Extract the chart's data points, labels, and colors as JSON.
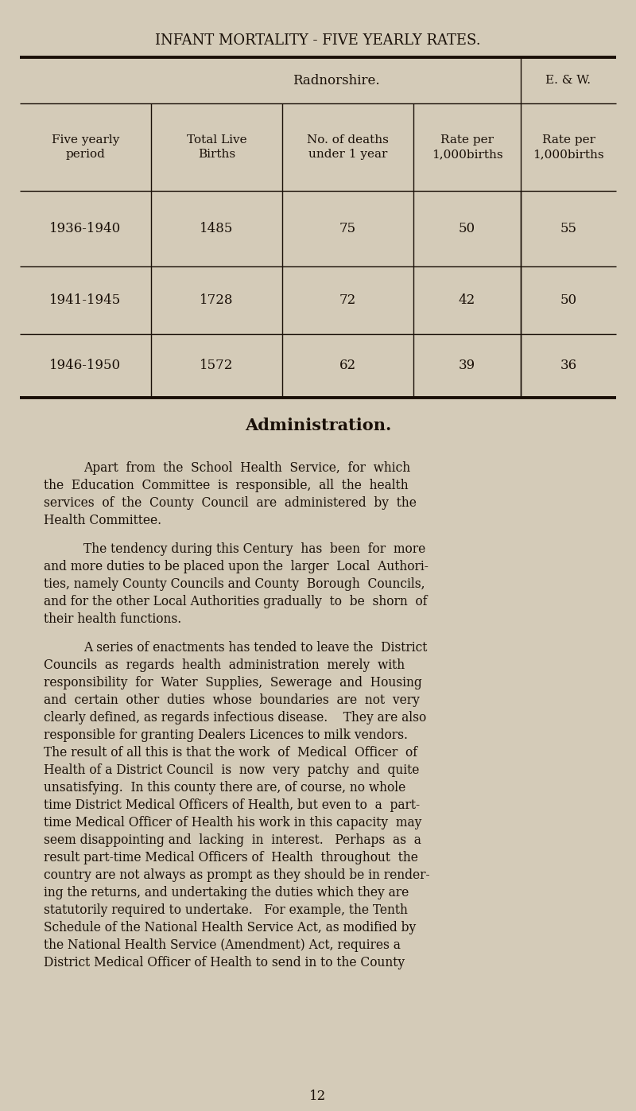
{
  "bg_color": "#d4cbb8",
  "text_color": "#1a1008",
  "title": "INFANT MORTALITY - FIVE YEARLY RATES.",
  "section_title": "Administration.",
  "table_data": [
    [
      "1936-1940",
      "1485",
      "75",
      "50",
      "55"
    ],
    [
      "1941-1945",
      "1728",
      "72",
      "42",
      "50"
    ],
    [
      "1946-1950",
      "1572",
      "62",
      "39",
      "36"
    ]
  ],
  "page_number": "12",
  "para1": "Apart  from  the  School  Health  Service,  for  which the  Education  Committee  is  responsible,  all  the  health services  of  the  County  Council  are  administered  by  the Health Committee.",
  "para2_lines": [
    "The tendency during this Century  has  been  for  more",
    "and more duties to be placed upon the  larger  Local  Authori-",
    "ties, namely County Councils and County  Borough  Councils,",
    "and for the other Local Authorities gradually  to  be  shorn  of",
    "their health functions."
  ],
  "para3_lines": [
    "A series of enactments has tended to leave the  District",
    "Councils  as  regards  health  administration  merely  with",
    "responsibility  for  Water  Supplies,  Sewerage  and  Housing",
    "and  certain  other  duties  whose  boundaries  are  not  very",
    "clearly defined, as regards infectious disease.    They are also",
    "responsible for granting Dealers Licences to milk vendors.",
    "The result of all this is that the work  of  Medical  Officer  of",
    "Health of a District Council  is  now  very  patchy  and  quite",
    "unsatisfying.  In this county there are, of course, no whole",
    "time District Medical Officers of Health, but even to  a  part-",
    "time Medical Officer of Health his work in this capacity  may",
    "seem disappointing and  lacking  in  interest.   Perhaps  as  a",
    "result part-time Medical Officers of  Health  throughout  the",
    "country are not always as prompt as they should be in render-",
    "ing the returns, and undertaking the duties which they are",
    "statutorily required to undertake.   For example, the Tenth",
    "Schedule of the National Health Service Act, as modified by",
    "the National Health Service (Amendment) Act, requires a",
    "District Medical Officer of Health to send in to the County"
  ],
  "para1_lines": [
    "Apart  from  the  School  Health  Service,  for  which",
    "the  Education  Committee  is  responsible,  all  the  health",
    "services  of  the  County  Council  are  administered  by  the",
    "Health Committee."
  ]
}
